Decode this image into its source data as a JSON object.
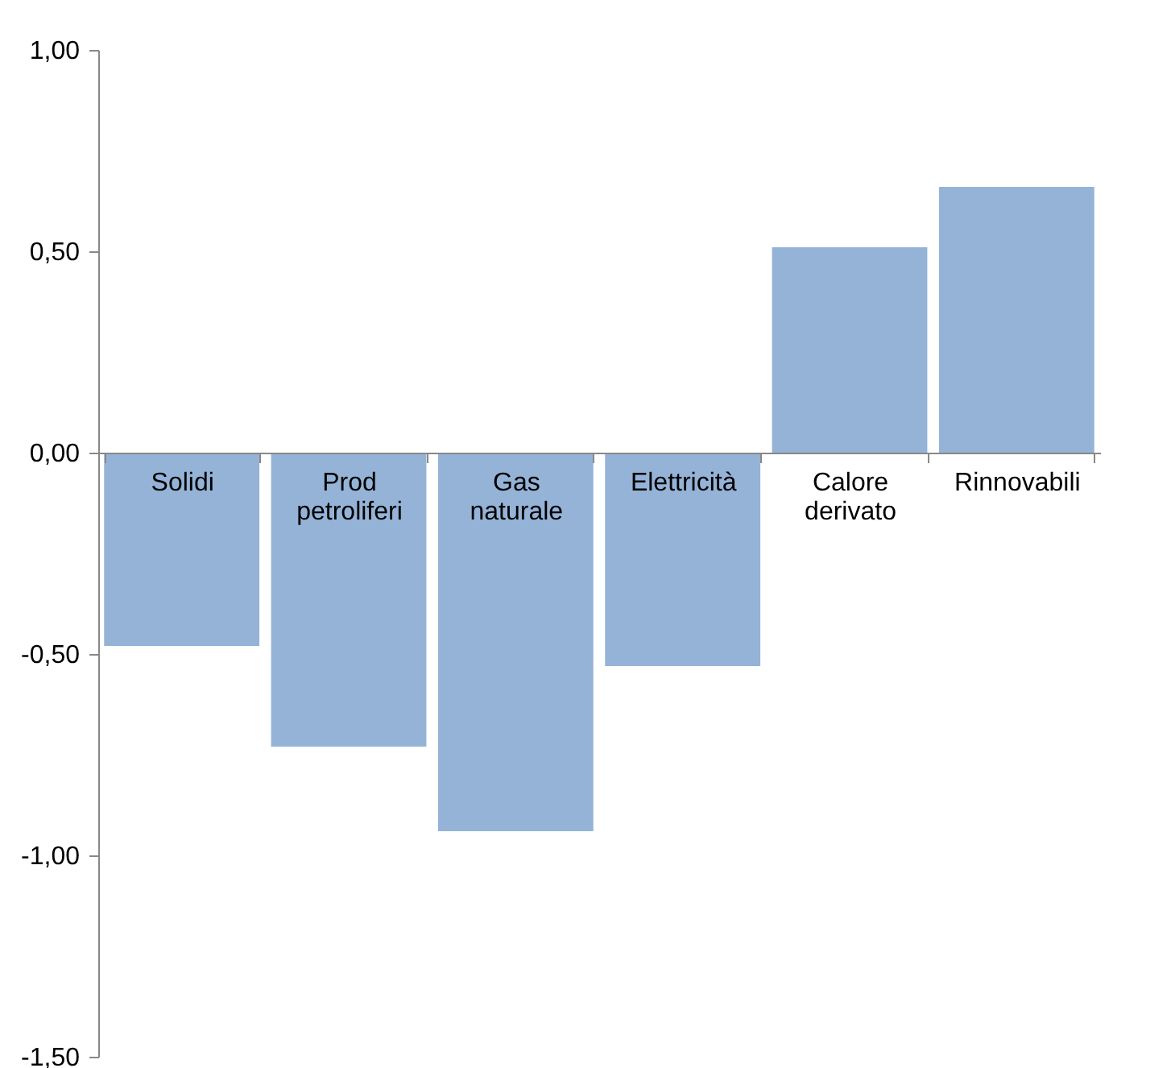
{
  "chart_data": {
    "type": "bar",
    "categories": [
      "Solidi",
      "Prod petroliferi",
      "Gas naturale",
      "Elettricità",
      "Calore derivato",
      "Rinnovabili"
    ],
    "values": [
      -0.48,
      -0.73,
      -0.94,
      -0.53,
      0.51,
      0.66
    ],
    "color": "#95b3d7",
    "ylim": [
      -1.5,
      1.0
    ],
    "yticks": [
      {
        "value": -1.5,
        "label": "-1,50"
      },
      {
        "value": -1.0,
        "label": "-1,00"
      },
      {
        "value": -0.5,
        "label": "-0,50"
      },
      {
        "value": 0,
        "label": "0,00"
      },
      {
        "value": 0.5,
        "label": "0,50"
      },
      {
        "value": 1.0,
        "label": "1,00"
      }
    ]
  }
}
